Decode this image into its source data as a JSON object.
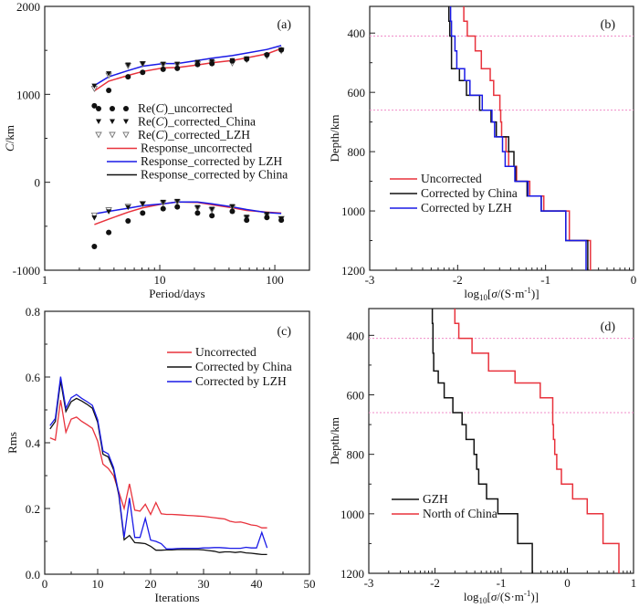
{
  "colors": {
    "red": "#e8323c",
    "blue": "#1a1ae6",
    "black": "#111111",
    "gray": "#777777",
    "dotted": "#f08cc8"
  },
  "chart_data": [
    {
      "id": "a",
      "type": "scatter",
      "panel_label": "(a)",
      "title": "",
      "xlabel": "Period/days",
      "ylabel_italic": "C",
      "ylabel_rest": "/km",
      "xscale": "log",
      "xlim": [
        1,
        200
      ],
      "ylim": [
        -1000,
        2000
      ],
      "xticks": [
        {
          "v": 1,
          "label": "1"
        },
        {
          "v": 10,
          "label": "10"
        },
        {
          "v": 100,
          "label": "100"
        }
      ],
      "yticks": [
        {
          "v": -1000,
          "label": "-1000"
        },
        {
          "v": 0,
          "label": "0"
        },
        {
          "v": 1000,
          "label": "1000"
        },
        {
          "v": 2000,
          "label": "2000"
        }
      ],
      "periods": [
        2.7,
        3.6,
        5.3,
        7.1,
        10.7,
        14.2,
        21.3,
        28.4,
        42.7,
        56.9,
        85.3,
        113.8
      ],
      "scatter_series": [
        {
          "name": "Re(C)_uncorrected",
          "legend_prefix": "Re(",
          "legend_italic": "C",
          "legend_suffix": ")_uncorrected",
          "marker": "circle",
          "real": [
            870,
            1045,
            1200,
            1250,
            1285,
            1295,
            1340,
            1350,
            1380,
            1400,
            1450,
            1505
          ],
          "imag": [
            -730,
            -570,
            -440,
            -350,
            -300,
            -280,
            -350,
            -380,
            -330,
            -430,
            -400,
            -430
          ]
        },
        {
          "name": "Re(C)_corrected_China",
          "legend_prefix": "Re(",
          "legend_italic": "C",
          "legend_suffix": ")_corrected_China",
          "marker": "triangle-down-filled",
          "real": [
            1090,
            1230,
            1330,
            1345,
            1340,
            1340,
            1360,
            1370,
            1380,
            1400,
            1440,
            1500
          ],
          "imag": [
            -410,
            -340,
            -290,
            -250,
            -230,
            -220,
            -290,
            -310,
            -280,
            -400,
            -370,
            -420
          ]
        },
        {
          "name": "Re(C)_corrected_LZH",
          "legend_prefix": "Re(",
          "legend_italic": "C",
          "legend_suffix": ")_corrected_LZH",
          "marker": "triangle-down-open",
          "real": [
            1060,
            1210,
            1320,
            1340,
            1330,
            1330,
            1340,
            1350,
            1350,
            1390,
            1430,
            1490
          ],
          "imag": [
            -380,
            -320,
            -280,
            -250,
            -240,
            -230,
            -300,
            -320,
            -290,
            -410,
            -380,
            -420
          ]
        }
      ],
      "line_series": [
        {
          "name": "Response_uncorrected",
          "color": "red",
          "real": [
            1040,
            1150,
            1215,
            1260,
            1300,
            1305,
            1335,
            1360,
            1385,
            1415,
            1460,
            1520
          ],
          "imag": [
            -480,
            -420,
            -340,
            -290,
            -245,
            -225,
            -230,
            -255,
            -290,
            -320,
            -340,
            -350
          ]
        },
        {
          "name": "Response_corrected by LZH",
          "color": "blue",
          "real": [
            1100,
            1200,
            1270,
            1320,
            1350,
            1350,
            1385,
            1410,
            1440,
            1470,
            1510,
            1555
          ],
          "imag": [
            -360,
            -330,
            -295,
            -265,
            -245,
            -225,
            -225,
            -245,
            -280,
            -310,
            -345,
            -355
          ]
        },
        {
          "name": "Response_corrected by China",
          "color": "black",
          "real": [],
          "imag": []
        }
      ]
    },
    {
      "id": "b",
      "type": "line",
      "panel_label": "(b)",
      "xlabel_pre": "log",
      "xlabel_sub": "10",
      "xlabel_mid": "[",
      "xlabel_italic": "σ",
      "xlabel_post": "/(S·m",
      "xlabel_sup": "-1",
      "xlabel_end": ")]",
      "ylabel": "Depth/km",
      "xlim": [
        -3,
        0
      ],
      "ylim": [
        1200,
        310
      ],
      "xticks": [
        {
          "v": -3,
          "label": "-3"
        },
        {
          "v": -2,
          "label": "-2"
        },
        {
          "v": -1,
          "label": "-1"
        },
        {
          "v": 0,
          "label": "0"
        }
      ],
      "yticks": [
        {
          "v": 400,
          "label": "400"
        },
        {
          "v": 600,
          "label": "600"
        },
        {
          "v": 800,
          "label": "800"
        },
        {
          "v": 1000,
          "label": "1000"
        },
        {
          "v": 1200,
          "label": "1200"
        }
      ],
      "reference_depths": [
        410,
        660
      ],
      "depth_boundaries": [
        310,
        360,
        410,
        460,
        520,
        560,
        610,
        660,
        700,
        750,
        800,
        850,
        900,
        950,
        1000,
        1100,
        1200
      ],
      "series": [
        {
          "name": "Uncorrected",
          "color": "red",
          "values": [
            -1.93,
            -1.89,
            -1.8,
            -1.73,
            -1.63,
            -1.59,
            -1.52,
            -1.51,
            -1.5,
            -1.45,
            -1.42,
            -1.33,
            -1.18,
            -1.02,
            -0.73,
            -0.49
          ]
        },
        {
          "name": "Corrected by China",
          "color": "black",
          "values": [
            -2.1,
            -2.09,
            -2.07,
            -2.07,
            -1.98,
            -1.9,
            -1.75,
            -1.62,
            -1.56,
            -1.42,
            -1.36,
            -1.34,
            -1.21,
            -1.05,
            -0.77,
            -0.52
          ]
        },
        {
          "name": "Corrected by LZH",
          "color": "blue",
          "values": [
            -2.08,
            -2.07,
            -2.03,
            -2.01,
            -1.92,
            -1.86,
            -1.72,
            -1.61,
            -1.58,
            -1.49,
            -1.46,
            -1.35,
            -1.2,
            -1.05,
            -0.77,
            -0.54
          ]
        }
      ]
    },
    {
      "id": "c",
      "type": "line",
      "panel_label": "(c)",
      "xlabel": "Iterations",
      "ylabel": "Rms",
      "xlim": [
        0,
        50
      ],
      "ylim": [
        0,
        0.8
      ],
      "xticks": [
        {
          "v": 0,
          "label": "0"
        },
        {
          "v": 10,
          "label": "10"
        },
        {
          "v": 20,
          "label": "20"
        },
        {
          "v": 30,
          "label": "30"
        },
        {
          "v": 40,
          "label": "40"
        },
        {
          "v": 50,
          "label": "50"
        }
      ],
      "yticks": [
        {
          "v": 0,
          "label": "0.0"
        },
        {
          "v": 0.2,
          "label": "0.2"
        },
        {
          "v": 0.4,
          "label": "0.4"
        },
        {
          "v": 0.6,
          "label": "0.6"
        },
        {
          "v": 0.8,
          "label": "0.8"
        }
      ],
      "x": [
        1,
        2,
        3,
        4,
        5,
        6,
        7,
        8,
        9,
        10,
        11,
        12,
        13,
        14,
        15,
        16,
        17,
        18,
        19,
        20,
        21,
        22,
        23,
        24,
        25,
        26,
        27,
        28,
        29,
        30,
        31,
        32,
        33,
        34,
        35,
        36,
        37,
        38,
        39,
        40,
        41,
        42
      ],
      "series": [
        {
          "name": "Uncorrected",
          "color": "red",
          "values": [
            0.415,
            0.408,
            0.53,
            0.432,
            0.472,
            0.478,
            0.465,
            0.455,
            0.444,
            0.405,
            0.335,
            0.322,
            0.3,
            0.25,
            0.2,
            0.275,
            0.195,
            0.192,
            0.213,
            0.182,
            0.218,
            0.184,
            0.182,
            0.182,
            0.181,
            0.18,
            0.179,
            0.178,
            0.177,
            0.176,
            0.174,
            0.172,
            0.17,
            0.168,
            0.161,
            0.158,
            0.159,
            0.155,
            0.15,
            0.148,
            0.141,
            0.141
          ]
        },
        {
          "name": "Corrected by China",
          "color": "black",
          "values": [
            0.442,
            0.465,
            0.588,
            0.495,
            0.525,
            0.535,
            0.527,
            0.517,
            0.505,
            0.462,
            0.365,
            0.357,
            0.318,
            0.24,
            0.105,
            0.118,
            0.096,
            0.095,
            0.093,
            0.085,
            0.073,
            0.073,
            0.074,
            0.074,
            0.075,
            0.075,
            0.075,
            0.075,
            0.075,
            0.074,
            0.072,
            0.07,
            0.066,
            0.068,
            0.068,
            0.066,
            0.068,
            0.065,
            0.064,
            0.062,
            0.06,
            0.06
          ]
        },
        {
          "name": "Corrected by LZH",
          "color": "blue",
          "values": [
            0.452,
            0.474,
            0.601,
            0.505,
            0.537,
            0.547,
            0.535,
            0.525,
            0.514,
            0.47,
            0.375,
            0.366,
            0.325,
            0.245,
            0.112,
            0.232,
            0.112,
            0.112,
            0.17,
            0.104,
            0.1,
            0.093,
            0.077,
            0.077,
            0.078,
            0.079,
            0.079,
            0.079,
            0.079,
            0.08,
            0.08,
            0.081,
            0.081,
            0.08,
            0.079,
            0.079,
            0.079,
            0.082,
            0.08,
            0.08,
            0.127,
            0.08
          ]
        }
      ]
    },
    {
      "id": "d",
      "type": "line",
      "panel_label": "(d)",
      "xlabel_pre": "log",
      "xlabel_sub": "10",
      "xlabel_mid": "[",
      "xlabel_italic": "σ",
      "xlabel_post": "/(S·m",
      "xlabel_sup": "-1",
      "xlabel_end": ")]",
      "ylabel": "Depth/km",
      "xlim": [
        -3,
        1
      ],
      "ylim": [
        1200,
        310
      ],
      "xticks": [
        {
          "v": -3,
          "label": "-3"
        },
        {
          "v": -2,
          "label": "-2"
        },
        {
          "v": -1,
          "label": "-1"
        },
        {
          "v": 0,
          "label": "0"
        },
        {
          "v": 1,
          "label": "1"
        }
      ],
      "yticks": [
        {
          "v": 400,
          "label": "400"
        },
        {
          "v": 600,
          "label": "600"
        },
        {
          "v": 800,
          "label": "800"
        },
        {
          "v": 1000,
          "label": "1000"
        },
        {
          "v": 1200,
          "label": "1200"
        }
      ],
      "reference_depths": [
        410,
        660
      ],
      "series": [
        {
          "name": "GZH",
          "color": "black",
          "depth_boundaries": [
            310,
            360,
            410,
            460,
            520,
            560,
            610,
            660,
            700,
            750,
            800,
            850,
            900,
            950,
            1000,
            1100,
            1200
          ],
          "values": [
            -2.04,
            -2.03,
            -2.03,
            -2.02,
            -1.95,
            -1.86,
            -1.73,
            -1.59,
            -1.53,
            -1.41,
            -1.37,
            -1.34,
            -1.22,
            -1.05,
            -0.75,
            -0.53
          ]
        },
        {
          "name": "North of China",
          "color": "red",
          "depth_boundaries": [
            310,
            360,
            410,
            460,
            520,
            560,
            610,
            660,
            700,
            750,
            800,
            850,
            900,
            950,
            1000,
            1100,
            1200
          ],
          "values": [
            -1.7,
            -1.64,
            -1.44,
            -1.19,
            -0.79,
            -0.41,
            -0.22,
            -0.22,
            -0.21,
            -0.19,
            -0.16,
            -0.09,
            0.08,
            0.3,
            0.54,
            0.78
          ]
        }
      ]
    }
  ]
}
